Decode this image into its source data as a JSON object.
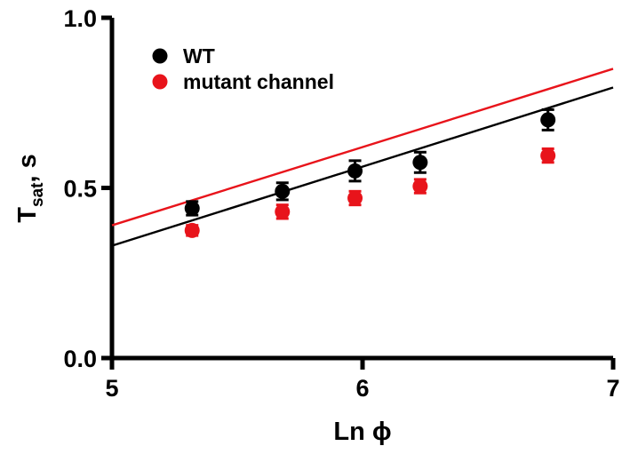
{
  "chart_data": {
    "type": "scatter",
    "title": "",
    "xlabel": "Ln ϕ",
    "ylabel_main": "T",
    "ylabel_sub": "sat",
    "ylabel_tail": ", s",
    "xlim": [
      5,
      7
    ],
    "ylim": [
      0.0,
      1.0
    ],
    "x_ticks": [
      {
        "v": 5,
        "label": "5"
      },
      {
        "v": 6,
        "label": "6"
      },
      {
        "v": 7,
        "label": "7"
      }
    ],
    "y_ticks": [
      {
        "v": 0.0,
        "label": "0.0"
      },
      {
        "v": 0.5,
        "label": "0.5"
      },
      {
        "v": 1.0,
        "label": "1.0"
      }
    ],
    "grid": false,
    "legend_position": "top-left",
    "series": [
      {
        "name": "WT",
        "color": "#000000",
        "points": [
          {
            "x": 5.32,
            "y": 0.44,
            "err": 0.02
          },
          {
            "x": 5.68,
            "y": 0.49,
            "err": 0.025
          },
          {
            "x": 5.97,
            "y": 0.55,
            "err": 0.03
          },
          {
            "x": 6.23,
            "y": 0.575,
            "err": 0.03
          },
          {
            "x": 6.74,
            "y": 0.7,
            "err": 0.03
          }
        ],
        "fit": {
          "x": [
            5,
            7
          ],
          "y": [
            0.33,
            0.795
          ]
        }
      },
      {
        "name": "mutant channel",
        "color": "#e8141b",
        "points": [
          {
            "x": 5.32,
            "y": 0.375,
            "err": 0.015
          },
          {
            "x": 5.68,
            "y": 0.43,
            "err": 0.02
          },
          {
            "x": 5.97,
            "y": 0.47,
            "err": 0.02
          },
          {
            "x": 6.23,
            "y": 0.505,
            "err": 0.02
          },
          {
            "x": 6.74,
            "y": 0.595,
            "err": 0.02
          }
        ],
        "fit": {
          "x": [
            5,
            7
          ],
          "y": [
            0.39,
            0.85
          ]
        }
      }
    ]
  }
}
